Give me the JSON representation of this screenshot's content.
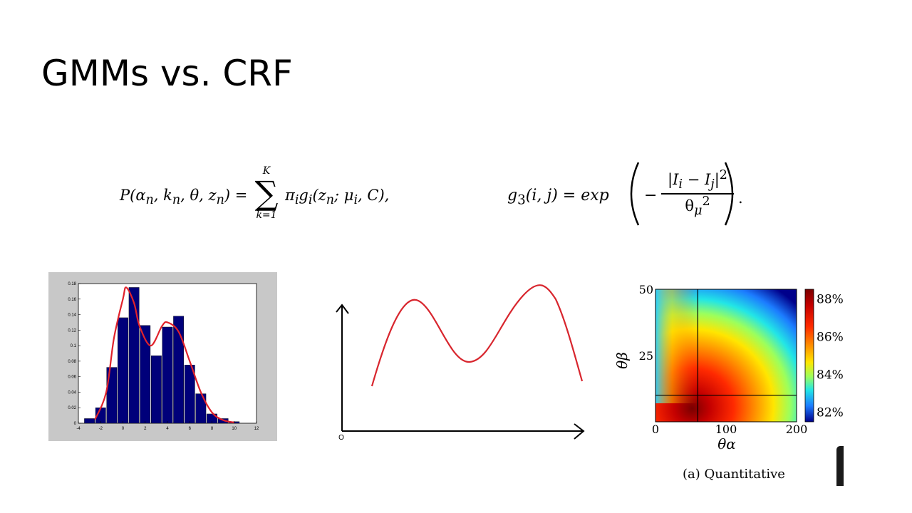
{
  "slide": {
    "title": "GMMs  vs. CRF"
  },
  "equations": {
    "left": {
      "lhs": "P(α",
      "sub_n1": "n",
      "k": ", k",
      "sub_n2": "n",
      "theta": ", θ, z",
      "sub_n3": "n",
      "equals": ") =",
      "sum_upper": "K",
      "sum_symbol": "∑",
      "sum_lower": "k=1",
      "rhs_pi": "π",
      "sub_i1": "i",
      "rhs_g": "g",
      "sub_i2": "i",
      "rhs_args": "(z",
      "sub_n4": "n",
      "rhs_mu": "; μ",
      "sub_i3": "i",
      "rhs_end": ", C),"
    },
    "right": {
      "g": "g",
      "sub3": "3",
      "args": "(i, j) = exp",
      "numerator": "|I",
      "num_sub_i": "i",
      "minus": " − I",
      "num_sub_j": "j",
      "num_end": "|",
      "num_sup": "2",
      "denominator": "θ",
      "den_sub": "μ",
      "den_sup": "2",
      "end": "."
    }
  },
  "chart_data": [
    {
      "type": "bar",
      "x": [
        -3,
        -2,
        -1,
        0,
        1,
        2,
        3,
        4,
        5,
        6,
        7,
        8,
        9,
        10
      ],
      "values": [
        0.006,
        0.02,
        0.072,
        0.136,
        0.175,
        0.126,
        0.087,
        0.124,
        0.138,
        0.075,
        0.038,
        0.012,
        0.006,
        0.002
      ],
      "line_series": {
        "x": [
          -2.5,
          -1.5,
          -0.8,
          0,
          0.3,
          1,
          1.5,
          2.5,
          3.5,
          4,
          5,
          6,
          7,
          8,
          9,
          10
        ],
        "values": [
          0.005,
          0.04,
          0.11,
          0.16,
          0.175,
          0.155,
          0.125,
          0.1,
          0.125,
          0.13,
          0.118,
          0.08,
          0.04,
          0.014,
          0.004,
          0.001
        ]
      },
      "xlim": [
        -4,
        12
      ],
      "ylim": [
        0,
        0.18
      ],
      "xticks": [
        "-4",
        "-2",
        "0",
        "2",
        "4",
        "6",
        "8",
        "10",
        "12"
      ],
      "yticks": [
        "0",
        "0.02",
        "0.04",
        "0.06",
        "0.08",
        "0.1",
        "0.12",
        "0.14",
        "0.16",
        "0.18"
      ],
      "bar_color": "#00007a",
      "line_color": "#e0222b",
      "frame_color": "#c8c8c8"
    },
    {
      "type": "line",
      "x": [
        0,
        1,
        2,
        3,
        4,
        5,
        6,
        7,
        8,
        9,
        10
      ],
      "values": [
        0.3,
        0.8,
        0.55,
        0.4,
        0.62,
        0.95,
        0.9,
        0.3,
        0,
        0,
        0
      ],
      "origin_label": "O",
      "line_color": "#d8262e"
    },
    {
      "type": "heatmap",
      "xlabel": "θα",
      "ylabel": "θβ",
      "xticks": [
        "0",
        "100",
        "200"
      ],
      "yticks": [
        "25",
        "50"
      ],
      "xlim": [
        0,
        200
      ],
      "ylim": [
        0,
        50
      ],
      "colorbar_ticks": [
        "88%",
        "86%",
        "84%",
        "82%"
      ],
      "colorbar_range": [
        81.5,
        88.5
      ],
      "crosshair": {
        "x": 60,
        "y": 10
      },
      "caption": "(a)  Quantitative"
    }
  ]
}
